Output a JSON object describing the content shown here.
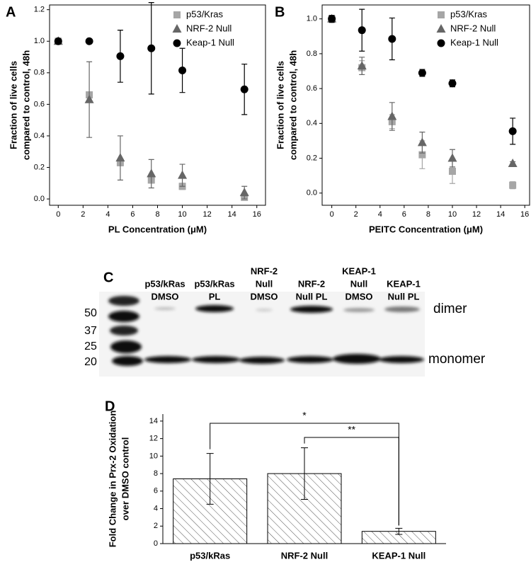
{
  "chart_data": [
    {
      "type": "scatter",
      "panel": "A",
      "ylabel": [
        "Fraction of live cells",
        "compared to control, 48h"
      ],
      "xlabel": "PL Concentration (μM)",
      "xlim": [
        -0.7,
        16.7
      ],
      "xticks": [
        0,
        2,
        4,
        6,
        8,
        10,
        12,
        14,
        16
      ],
      "ylim": [
        -0.04,
        1.23
      ],
      "yticks": [
        {
          "value": 0,
          "label": "0.0"
        },
        {
          "value": 0.2,
          "label": "0.2"
        },
        {
          "value": 0.4,
          "label": "0.4"
        },
        {
          "value": 0.6,
          "label": "0.6"
        },
        {
          "value": 0.8,
          "label": "0.8"
        },
        {
          "value": 1,
          "label": "1.0"
        },
        {
          "value": 1.2,
          "label": "1.2"
        }
      ],
      "legend": "upper right",
      "x": [
        0,
        2.5,
        5,
        7.5,
        10,
        15
      ],
      "series": [
        {
          "name": "p53/Kras",
          "color": "#a6a6a6",
          "marker": "square",
          "values": [
            1.0,
            0.66,
            0.23,
            0.12,
            0.08,
            0.01
          ],
          "errors": [
            0.01,
            0.02,
            0.02,
            0.02,
            0.02,
            0.01
          ]
        },
        {
          "name": "NRF-2 Null",
          "color": "#666666",
          "marker": "triangle",
          "values": [
            1.0,
            0.63,
            0.26,
            0.16,
            0.15,
            0.04
          ],
          "errors": [
            0.01,
            0.24,
            0.14,
            0.09,
            0.07,
            0.04
          ]
        },
        {
          "name": "Keap-1 Null",
          "color": "#000000",
          "marker": "circle",
          "values": [
            1.0,
            1.0,
            0.905,
            0.955,
            0.815,
            0.695
          ],
          "errors": [
            0.01,
            0.01,
            0.165,
            0.29,
            0.14,
            0.16
          ]
        }
      ]
    },
    {
      "type": "scatter",
      "panel": "B",
      "ylabel": [
        "Fraction of live cells",
        "compared to control, 48h"
      ],
      "xlabel": "PEITC Concentration (μM)",
      "xlim": [
        -0.8,
        16.4
      ],
      "xticks": [
        0,
        2,
        4,
        6,
        8,
        10,
        12,
        14,
        16
      ],
      "ylim": [
        -0.07,
        1.08
      ],
      "yticks": [
        {
          "value": 0,
          "label": "0.0"
        },
        {
          "value": 0.2,
          "label": "0.2"
        },
        {
          "value": 0.4,
          "label": "0.4"
        },
        {
          "value": 0.6,
          "label": "0.6"
        },
        {
          "value": 0.8,
          "label": "0.8"
        },
        {
          "value": 1,
          "label": "1.0"
        }
      ],
      "legend": "upper right",
      "x": [
        0,
        2.5,
        5,
        7.5,
        10,
        15
      ],
      "series": [
        {
          "name": "p53/Kras",
          "color": "#a6a6a6",
          "marker": "square",
          "values": [
            1.0,
            0.72,
            0.41,
            0.22,
            0.125,
            0.045
          ],
          "errors": [
            0.01,
            0.04,
            0.04,
            0.08,
            0.07,
            0.02
          ]
        },
        {
          "name": "NRF-2 Null",
          "color": "#666666",
          "marker": "triangle",
          "values": [
            1.0,
            0.73,
            0.44,
            0.29,
            0.2,
            0.17
          ],
          "errors": [
            0.01,
            0.05,
            0.08,
            0.06,
            0.05,
            0.01
          ]
        },
        {
          "name": "Keap-1 Null",
          "color": "#000000",
          "marker": "circle",
          "values": [
            1.0,
            0.935,
            0.885,
            0.69,
            0.63,
            0.355
          ],
          "errors": [
            0.02,
            0.12,
            0.12,
            0.02,
            0.02,
            0.075
          ]
        }
      ]
    },
    {
      "type": "bar",
      "panel": "D",
      "ylabel": [
        "Fold Change in Prx-2 Oxidation",
        "over DMSO control"
      ],
      "ylim": [
        0,
        14.8
      ],
      "yticks": [
        0,
        2,
        4,
        6,
        8,
        10,
        12,
        14
      ],
      "categories": [
        "p53/kRas",
        "NRF-2 Null",
        "KEAP-1 Null"
      ],
      "values": [
        7.4,
        8.0,
        1.4
      ],
      "errors": [
        2.9,
        2.95,
        0.35
      ],
      "annotations": [
        "*",
        "**"
      ]
    }
  ],
  "blot": {
    "panel": "C",
    "lanes": [
      [
        "p53/kRas",
        "DMSO"
      ],
      [
        "p53/kRas",
        "PL"
      ],
      [
        "NRF-2",
        "Null",
        "DMSO"
      ],
      [
        "NRF-2",
        "Null PL"
      ],
      [
        "KEAP-1",
        "Null",
        "DMSO"
      ],
      [
        "KEAP-1",
        "Null PL"
      ]
    ],
    "markers": [
      "50",
      "37",
      "25",
      "20"
    ],
    "bands": [
      "dimer",
      "monomer"
    ]
  }
}
